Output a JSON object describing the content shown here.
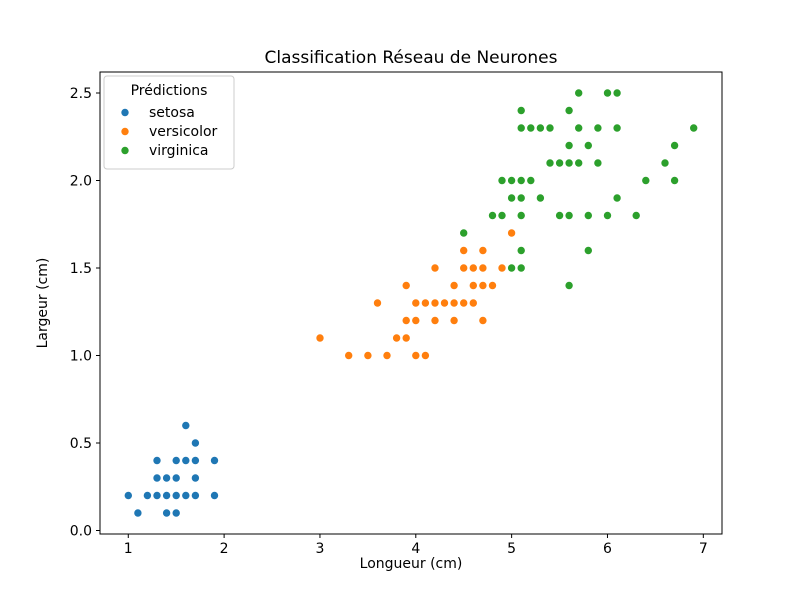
{
  "chart_data": {
    "type": "scatter",
    "title": "Classification Réseau de Neurones",
    "xlabel": "Longueur (cm)",
    "ylabel": "Largeur (cm)",
    "xlim": [
      0.705,
      7.195
    ],
    "ylim": [
      -0.02,
      2.62
    ],
    "xticks": [
      1,
      2,
      3,
      4,
      5,
      6,
      7
    ],
    "xtick_labels": [
      "1",
      "2",
      "3",
      "4",
      "5",
      "6",
      "7"
    ],
    "yticks": [
      0.0,
      0.5,
      1.0,
      1.5,
      2.0,
      2.5
    ],
    "ytick_labels": [
      "0.0",
      "0.5",
      "1.0",
      "1.5",
      "2.0",
      "2.5"
    ],
    "grid": false,
    "legend_title": "Prédictions",
    "legend_position": "upper left",
    "marker_radius_px": 3.7,
    "series": [
      {
        "name": "setosa",
        "color": "#1f77b4",
        "points": [
          [
            1.0,
            0.2
          ],
          [
            1.1,
            0.1
          ],
          [
            1.2,
            0.2
          ],
          [
            1.3,
            0.2
          ],
          [
            1.3,
            0.3
          ],
          [
            1.3,
            0.4
          ],
          [
            1.4,
            0.1
          ],
          [
            1.4,
            0.2
          ],
          [
            1.4,
            0.3
          ],
          [
            1.5,
            0.1
          ],
          [
            1.5,
            0.2
          ],
          [
            1.5,
            0.3
          ],
          [
            1.5,
            0.4
          ],
          [
            1.6,
            0.2
          ],
          [
            1.6,
            0.4
          ],
          [
            1.6,
            0.6
          ],
          [
            1.7,
            0.2
          ],
          [
            1.7,
            0.3
          ],
          [
            1.7,
            0.4
          ],
          [
            1.7,
            0.5
          ],
          [
            1.9,
            0.2
          ],
          [
            1.9,
            0.4
          ]
        ]
      },
      {
        "name": "versicolor",
        "color": "#ff7f0e",
        "points": [
          [
            3.0,
            1.1
          ],
          [
            3.3,
            1.0
          ],
          [
            3.5,
            1.0
          ],
          [
            3.6,
            1.3
          ],
          [
            3.7,
            1.0
          ],
          [
            3.8,
            1.1
          ],
          [
            3.9,
            1.1
          ],
          [
            3.9,
            1.2
          ],
          [
            3.9,
            1.4
          ],
          [
            4.0,
            1.0
          ],
          [
            4.0,
            1.2
          ],
          [
            4.0,
            1.3
          ],
          [
            4.1,
            1.0
          ],
          [
            4.1,
            1.3
          ],
          [
            4.2,
            1.2
          ],
          [
            4.2,
            1.3
          ],
          [
            4.2,
            1.5
          ],
          [
            4.3,
            1.3
          ],
          [
            4.4,
            1.2
          ],
          [
            4.4,
            1.3
          ],
          [
            4.4,
            1.4
          ],
          [
            4.5,
            1.3
          ],
          [
            4.5,
            1.5
          ],
          [
            4.5,
            1.6
          ],
          [
            4.6,
            1.3
          ],
          [
            4.6,
            1.4
          ],
          [
            4.6,
            1.5
          ],
          [
            4.7,
            1.2
          ],
          [
            4.7,
            1.4
          ],
          [
            4.7,
            1.5
          ],
          [
            4.7,
            1.6
          ],
          [
            4.8,
            1.4
          ],
          [
            4.9,
            1.5
          ],
          [
            5.0,
            1.7
          ]
        ]
      },
      {
        "name": "virginica",
        "color": "#2ca02c",
        "points": [
          [
            4.5,
            1.7
          ],
          [
            4.8,
            1.8
          ],
          [
            4.9,
            1.8
          ],
          [
            4.9,
            2.0
          ],
          [
            5.0,
            1.5
          ],
          [
            5.0,
            1.9
          ],
          [
            5.0,
            2.0
          ],
          [
            5.1,
            1.5
          ],
          [
            5.1,
            1.6
          ],
          [
            5.1,
            1.8
          ],
          [
            5.1,
            1.9
          ],
          [
            5.1,
            2.0
          ],
          [
            5.1,
            2.3
          ],
          [
            5.1,
            2.4
          ],
          [
            5.2,
            2.0
          ],
          [
            5.2,
            2.3
          ],
          [
            5.3,
            1.9
          ],
          [
            5.3,
            2.3
          ],
          [
            5.4,
            2.1
          ],
          [
            5.4,
            2.3
          ],
          [
            5.5,
            1.8
          ],
          [
            5.5,
            2.1
          ],
          [
            5.6,
            1.4
          ],
          [
            5.6,
            1.8
          ],
          [
            5.6,
            2.1
          ],
          [
            5.6,
            2.2
          ],
          [
            5.6,
            2.4
          ],
          [
            5.7,
            2.1
          ],
          [
            5.7,
            2.3
          ],
          [
            5.7,
            2.5
          ],
          [
            5.8,
            1.6
          ],
          [
            5.8,
            1.8
          ],
          [
            5.8,
            2.2
          ],
          [
            5.9,
            2.1
          ],
          [
            5.9,
            2.3
          ],
          [
            6.0,
            1.8
          ],
          [
            6.0,
            2.5
          ],
          [
            6.1,
            1.9
          ],
          [
            6.1,
            2.3
          ],
          [
            6.1,
            2.5
          ],
          [
            6.3,
            1.8
          ],
          [
            6.4,
            2.0
          ],
          [
            6.6,
            2.1
          ],
          [
            6.7,
            2.0
          ],
          [
            6.7,
            2.2
          ],
          [
            6.9,
            2.3
          ]
        ]
      }
    ]
  }
}
